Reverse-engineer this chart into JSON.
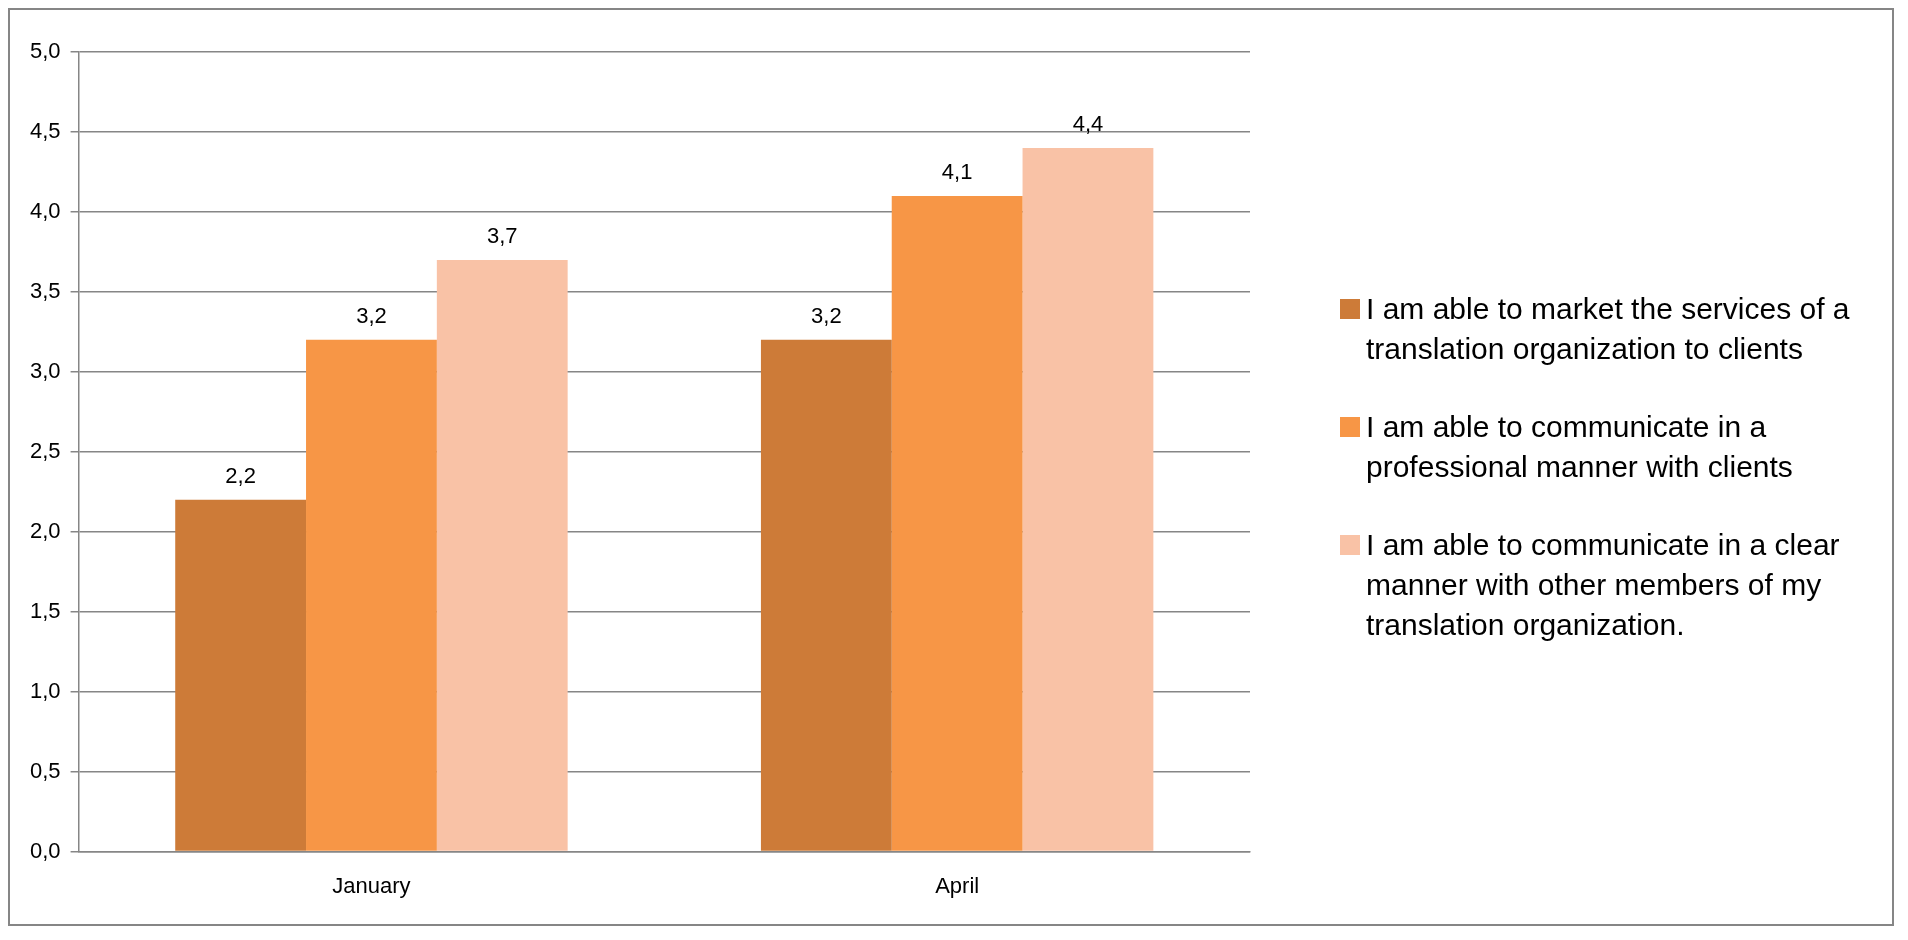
{
  "chart_data": {
    "type": "bar",
    "categories": [
      "January",
      "April"
    ],
    "series": [
      {
        "name": "I am able to market the services of a translation organization to clients",
        "color": "#cd7b38",
        "values": [
          2.2,
          3.2
        ],
        "value_labels": [
          "2,2",
          "3,2"
        ]
      },
      {
        "name": "I am able to communicate in a professional manner with clients",
        "color": "#f79646",
        "values": [
          3.2,
          4.1
        ],
        "value_labels": [
          "3,2",
          "4,1"
        ]
      },
      {
        "name": "I am able to communicate in a clear manner with other members of my translation organization.",
        "color": "#f9c2a6",
        "values": [
          3.7,
          4.4
        ],
        "value_labels": [
          "3,7",
          "4,4"
        ]
      }
    ],
    "ylim": [
      0,
      5
    ],
    "yticks": [
      {
        "value": 0,
        "label": "0,0"
      },
      {
        "value": 0.5,
        "label": "0,5"
      },
      {
        "value": 1,
        "label": "1,0"
      },
      {
        "value": 1.5,
        "label": "1,5"
      },
      {
        "value": 2,
        "label": "2,0"
      },
      {
        "value": 2.5,
        "label": "2,5"
      },
      {
        "value": 3,
        "label": "3,0"
      },
      {
        "value": 3.5,
        "label": "3,5"
      },
      {
        "value": 4,
        "label": "4,0"
      },
      {
        "value": 4.5,
        "label": "4,5"
      },
      {
        "value": 5,
        "label": "5,0"
      }
    ],
    "grid": "y",
    "legend": "right"
  }
}
